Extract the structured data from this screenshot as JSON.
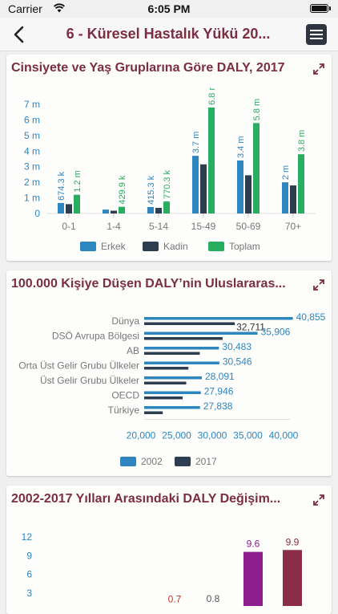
{
  "status": {
    "carrier": "Carrier",
    "time": "6:05 PM"
  },
  "header": {
    "title": "6 - Küresel Hastalık Yükü 20..."
  },
  "colors": {
    "accent": "#7b2d44",
    "blue": "#2e86c1",
    "navy": "#2c3e50",
    "green": "#27ae60",
    "purple": "#8e1e8e",
    "wine": "#8b2c4b",
    "red_label": "#c0392b"
  },
  "card1": {
    "title": "Cinsiyete ve Yaş Gruplarına Göre DALY, 2017",
    "chart_data": {
      "type": "bar",
      "categories": [
        "0-1",
        "1-4",
        "5-14",
        "15-49",
        "50-69",
        "70+"
      ],
      "series": [
        {
          "name": "Erkek",
          "values": [
            0.6743,
            0.25,
            0.4153,
            3.7,
            3.4,
            2.0
          ],
          "labels": [
            "674.3 k",
            "",
            "415.3 k",
            "3.7 m",
            "3.4 m",
            "2 m"
          ]
        },
        {
          "name": "Kadin",
          "values": [
            0.6,
            0.18,
            0.36,
            3.15,
            2.45,
            1.8
          ],
          "labels": [
            "",
            "",
            "",
            "",
            "",
            ""
          ]
        },
        {
          "name": "Toplam",
          "values": [
            1.2,
            0.4299,
            0.7703,
            6.8,
            5.8,
            3.8
          ],
          "labels": [
            "1.2 m",
            "429.9 k",
            "770.3 k",
            "6.8 r",
            "5.8 m",
            "3.8 m"
          ]
        }
      ],
      "yticks": [
        "0",
        "1 m",
        "2 m",
        "3 m",
        "4 m",
        "5 m",
        "6 m",
        "7 m"
      ],
      "ylim": [
        0,
        7
      ],
      "legend": "bottom"
    }
  },
  "card2": {
    "title": "100.000 Kişiye Düşen DALY’nin Uluslararas...",
    "chart_data": {
      "type": "bar",
      "orientation": "horizontal",
      "categories": [
        "Dünya",
        "DSÖ Avrupa Bölgesi",
        "AB",
        "Orta Üst Gelir Grubu Ülkeler",
        "Üst Gelir Grubu Ülkeler",
        "OECD",
        "Türkiye"
      ],
      "series": [
        {
          "name": "2002",
          "values": [
            40855,
            35906,
            30483,
            30546,
            28091,
            27946,
            27838
          ],
          "labels": [
            "40,855",
            "35,906",
            "30,483",
            "30,546",
            "28,091",
            "27,946",
            "27,838"
          ]
        },
        {
          "name": "2017",
          "values": [
            32711,
            31000,
            27800,
            26200,
            25900,
            25400,
            22600
          ],
          "labels": [
            "32,711",
            "",
            "",
            "",
            "",
            "",
            ""
          ]
        }
      ],
      "xticks": [
        "20,000",
        "25,000",
        "30,000",
        "35,000",
        "40,000"
      ],
      "xlim": [
        20000,
        40000
      ],
      "legend": "bottom"
    }
  },
  "card3": {
    "title": "2002-2017 Yılları Arasındaki DALY Değişim...",
    "chart_data": {
      "type": "bar",
      "values": [
        0.7,
        0.8,
        9.6,
        9.9
      ],
      "labels": [
        "0.7",
        "0.8",
        "9.6",
        "9.9"
      ],
      "yticks": [
        "3",
        "6",
        "9",
        "12"
      ],
      "ylim": [
        0,
        12
      ]
    }
  }
}
